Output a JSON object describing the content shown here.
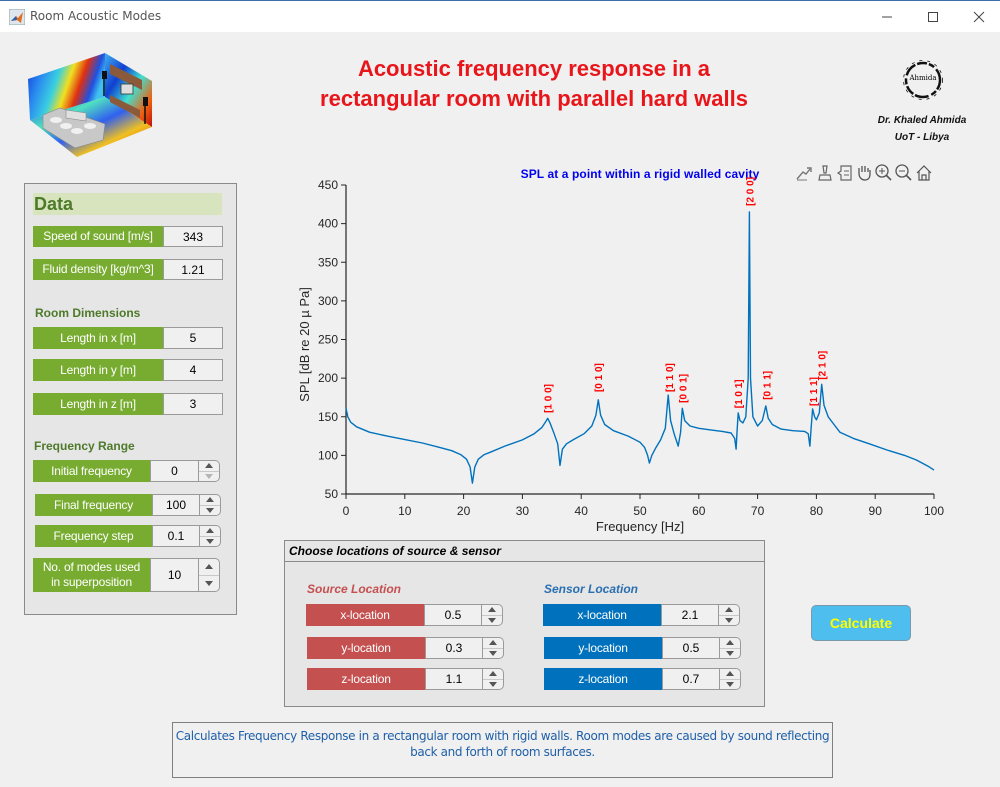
{
  "window": {
    "title": "Room Acoustic Modes",
    "controls": {
      "minimize": "minimize",
      "maximize": "maximize",
      "close": "close"
    }
  },
  "header": {
    "title_line1": "Acoustic frequency response in a",
    "title_line2": "rectangular room with parallel hard walls",
    "logo_text": "Ahmida",
    "author": "Dr. Khaled Ahmida",
    "affiliation": "UoT - Libya"
  },
  "data_panel": {
    "title": "Data",
    "fields": [
      {
        "label": "Speed of sound [m/s]",
        "value": "343"
      },
      {
        "label": "Fluid density [kg/m^3]",
        "value": "1.21"
      }
    ],
    "room_dimensions": {
      "title": "Room Dimensions",
      "fields": [
        {
          "label": "Length in x [m]",
          "value": "5"
        },
        {
          "label": "Length in y [m]",
          "value": "4"
        },
        {
          "label": "Length in z [m]",
          "value": "3"
        }
      ]
    },
    "frequency_range": {
      "title": "Frequency Range",
      "fields": [
        {
          "label": "Initial frequency",
          "value": "0"
        },
        {
          "label": "Final frequency",
          "value": "100"
        },
        {
          "label": "Frequency step",
          "value": "0.1"
        },
        {
          "label_line1": "No. of modes used",
          "label_line2": "in superposition",
          "value": "10"
        }
      ]
    }
  },
  "locations_panel": {
    "title": "Choose locations of source & sensor",
    "source": {
      "title": "Source Location",
      "color": "#c55050",
      "fields": [
        {
          "label": "x-location",
          "value": "0.5"
        },
        {
          "label": "y-location",
          "value": "0.3"
        },
        {
          "label": "z-location",
          "value": "1.1"
        }
      ]
    },
    "sensor": {
      "title": "Sensor Location",
      "color": "#0072bd",
      "fields": [
        {
          "label": "x-location",
          "value": "2.1"
        },
        {
          "label": "y-location",
          "value": "0.5"
        },
        {
          "label": "z-location",
          "value": "0.7"
        }
      ]
    }
  },
  "calculate_button": {
    "label": "Calculate"
  },
  "description": "Calculates Frequency Response in a rectangular room with rigid walls. Room modes are caused by sound reflecting back and forth of room surfaces.",
  "axes_toolbar": [
    "export-icon",
    "brush-icon",
    "data-tips-icon",
    "pan-icon",
    "zoom-in-icon",
    "zoom-out-icon",
    "restore-view-icon"
  ],
  "chart_data": {
    "type": "line",
    "title": "SPL at a point within a rigid walled cavity",
    "xlabel": "Frequency [Hz]",
    "ylabel": "SPL  [dB  re  20  µ Pa]",
    "xlim": [
      0,
      100
    ],
    "ylim": [
      50,
      450
    ],
    "xticks": [
      0,
      10,
      20,
      30,
      40,
      50,
      60,
      70,
      80,
      90,
      100
    ],
    "yticks": [
      50,
      100,
      150,
      200,
      250,
      300,
      350,
      400,
      450
    ],
    "grid": false,
    "line_color": "#0072bd",
    "label_color": "#ff0000",
    "series": [
      {
        "name": "SPL",
        "points": [
          [
            0,
            161
          ],
          [
            0.3,
            150
          ],
          [
            0.8,
            143
          ],
          [
            1.8,
            137
          ],
          [
            4,
            130
          ],
          [
            7,
            125
          ],
          [
            9.7,
            121
          ],
          [
            13,
            116
          ],
          [
            16,
            110
          ],
          [
            18,
            106
          ],
          [
            19.5,
            101
          ],
          [
            20.5,
            95
          ],
          [
            21.1,
            85
          ],
          [
            21.5,
            64
          ],
          [
            21.9,
            85
          ],
          [
            22.5,
            95
          ],
          [
            23.5,
            101
          ],
          [
            24.5,
            104
          ],
          [
            27,
            112
          ],
          [
            30,
            120
          ],
          [
            32,
            128
          ],
          [
            33.3,
            136
          ],
          [
            34,
            144
          ],
          [
            34.3,
            148
          ],
          [
            34.7,
            142
          ],
          [
            35.3,
            130
          ],
          [
            36,
            115
          ],
          [
            36.4,
            87
          ],
          [
            36.8,
            108
          ],
          [
            37.5,
            115
          ],
          [
            38.6,
            120
          ],
          [
            40.5,
            128
          ],
          [
            41.8,
            138
          ],
          [
            42.5,
            152
          ],
          [
            42.9,
            172
          ],
          [
            43.3,
            152
          ],
          [
            44,
            140
          ],
          [
            45.5,
            132
          ],
          [
            48,
            125
          ],
          [
            50,
            117
          ],
          [
            50.8,
            110
          ],
          [
            51.3,
            100
          ],
          [
            51.6,
            90
          ],
          [
            52,
            100
          ],
          [
            52.7,
            110
          ],
          [
            53.5,
            120
          ],
          [
            54.3,
            135
          ],
          [
            54.8,
            178
          ],
          [
            55.2,
            145
          ],
          [
            55.8,
            128
          ],
          [
            56.5,
            112
          ],
          [
            56.9,
            130
          ],
          [
            57.2,
            161
          ],
          [
            57.6,
            145
          ],
          [
            58.5,
            138
          ],
          [
            60,
            135
          ],
          [
            62,
            133
          ],
          [
            64,
            131
          ],
          [
            65.5,
            129
          ],
          [
            66.1,
            122
          ],
          [
            66.35,
            108
          ],
          [
            66.5,
            130
          ],
          [
            66.7,
            155
          ],
          [
            67,
            145
          ],
          [
            67.5,
            142
          ],
          [
            68,
            150
          ],
          [
            68.4,
            200
          ],
          [
            68.6,
            415
          ],
          [
            68.8,
            200
          ],
          [
            69.2,
            150
          ],
          [
            70,
            138
          ],
          [
            70.8,
            145
          ],
          [
            71.4,
            164
          ],
          [
            71.8,
            148
          ],
          [
            72.5,
            140
          ],
          [
            74,
            134
          ],
          [
            76,
            132
          ],
          [
            78,
            131
          ],
          [
            78.6,
            128
          ],
          [
            78.9,
            112
          ],
          [
            79.1,
            135
          ],
          [
            79.35,
            160
          ],
          [
            79.7,
            150
          ],
          [
            80,
            146
          ],
          [
            80.5,
            155
          ],
          [
            80.9,
            192
          ],
          [
            81.3,
            165
          ],
          [
            82,
            150
          ],
          [
            83,
            140
          ],
          [
            84,
            130
          ],
          [
            86.3,
            122
          ],
          [
            89,
            115
          ],
          [
            92,
            107
          ],
          [
            95,
            100
          ],
          [
            97,
            94
          ],
          [
            99,
            86
          ],
          [
            100,
            81
          ]
        ]
      }
    ],
    "annotations": [
      {
        "text": "[1 0 0]",
        "x": 34.3,
        "y": 155
      },
      {
        "text": "[0 1 0]",
        "x": 42.9,
        "y": 182
      },
      {
        "text": "[1 1 0]",
        "x": 54.9,
        "y": 182
      },
      {
        "text": "[0 0 1]",
        "x": 57.2,
        "y": 168
      },
      {
        "text": "[1 0 1]",
        "x": 66.7,
        "y": 161
      },
      {
        "text": "[2 0 0]",
        "x": 68.6,
        "y": 423
      },
      {
        "text": "[0 1 1]",
        "x": 71.5,
        "y": 172
      },
      {
        "text": "[1 1 1]",
        "x": 79.4,
        "y": 164
      },
      {
        "text": "[2 1 0]",
        "x": 80.9,
        "y": 198
      }
    ]
  }
}
